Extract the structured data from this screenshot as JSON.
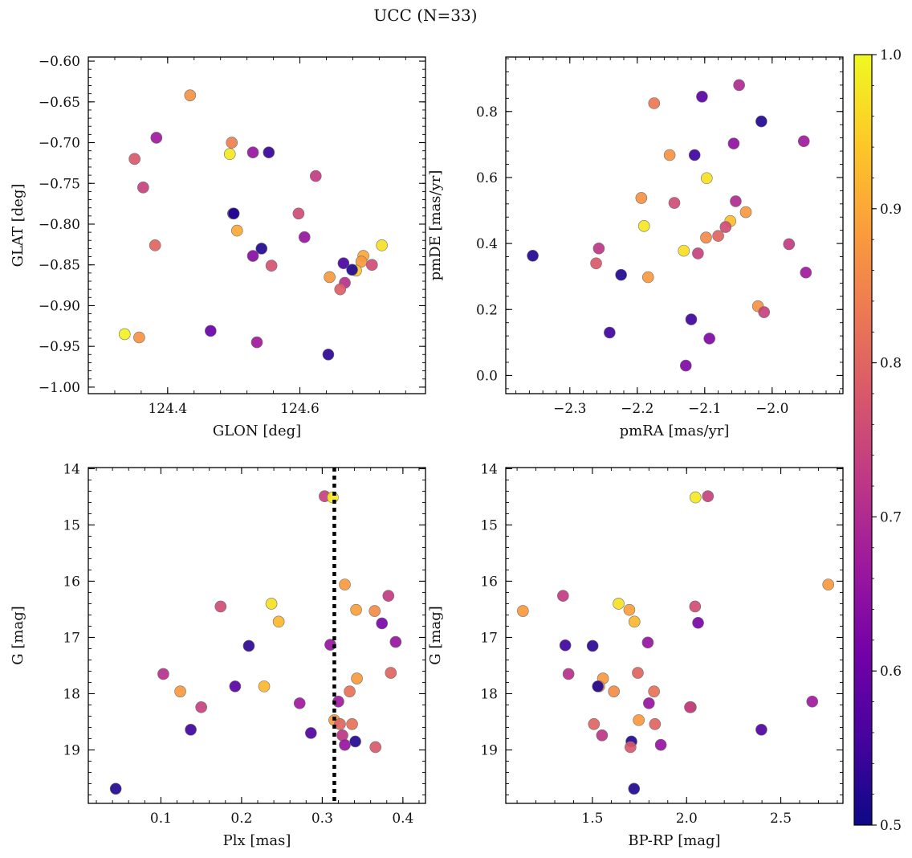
{
  "figure_title": "UCC (N=33)",
  "colorbar": {
    "min": 0.5,
    "max": 1.0,
    "ticks": [
      "0.5",
      "0.6",
      "0.7",
      "0.8",
      "0.9",
      "1.0"
    ],
    "colormap_stops": [
      "#0d0887",
      "#46039f",
      "#7201a8",
      "#9c179e",
      "#bd3786",
      "#d8576b",
      "#ed7953",
      "#fb9f3a",
      "#fdca26",
      "#f0f921"
    ]
  },
  "chart_data": [
    {
      "type": "scatter",
      "id": "p1",
      "xlabel": "GLON [deg]",
      "ylabel": "GLAT [deg]",
      "xlim": [
        124.28,
        124.79
      ],
      "ylim": [
        -1.008,
        -0.595
      ],
      "y_inverted": false,
      "xticks": [
        124.4,
        124.6
      ],
      "xtick_labels": [
        "124.4",
        "124.6"
      ],
      "yticks": [
        -1.0,
        -0.95,
        -0.9,
        -0.85,
        -0.8,
        -0.75,
        -0.7,
        -0.65,
        -0.6
      ],
      "ytick_labels": [
        "−1.00",
        "−0.95",
        "−0.90",
        "−0.85",
        "−0.80",
        "−0.75",
        "−0.70",
        "−0.65",
        "−0.60"
      ],
      "x": [
        124.434,
        124.35,
        124.383,
        124.363,
        124.381,
        124.497,
        124.494,
        124.529,
        124.553,
        124.624,
        124.598,
        124.607,
        124.499,
        124.5,
        124.505,
        124.542,
        124.529,
        124.557,
        124.724,
        124.696,
        124.693,
        124.709,
        124.685,
        124.666,
        124.679,
        124.645,
        124.668,
        124.661,
        124.335,
        124.357,
        124.465,
        124.535,
        124.643
      ],
      "y": [
        -0.642,
        -0.72,
        -0.694,
        -0.755,
        -0.826,
        -0.7,
        -0.714,
        -0.712,
        -0.712,
        -0.741,
        -0.787,
        -0.816,
        -0.787,
        -0.787,
        -0.808,
        -0.83,
        -0.839,
        -0.851,
        -0.826,
        -0.839,
        -0.846,
        -0.85,
        -0.857,
        -0.848,
        -0.856,
        -0.865,
        -0.872,
        -0.88,
        -0.935,
        -0.939,
        -0.931,
        -0.945,
        -0.96
      ],
      "c": [
        0.87,
        0.78,
        0.67,
        0.74,
        0.8,
        0.84,
        0.98,
        0.66,
        0.54,
        0.73,
        0.76,
        0.66,
        0.57,
        0.52,
        0.9,
        0.52,
        0.64,
        0.77,
        0.97,
        0.9,
        0.88,
        0.76,
        0.94,
        0.56,
        0.52,
        0.88,
        0.71,
        0.79,
        0.99,
        0.87,
        0.6,
        0.67,
        0.53
      ]
    },
    {
      "type": "scatter",
      "id": "p2",
      "xlabel": "pmRA [mas/yr]",
      "ylabel": "pmDE [mas/yr]",
      "xlim": [
        -2.395,
        -1.895
      ],
      "ylim": [
        -0.055,
        0.965
      ],
      "y_inverted": false,
      "xticks": [
        -2.3,
        -2.2,
        -2.1,
        -2.0
      ],
      "xtick_labels": [
        "−2.3",
        "−2.2",
        "−2.1",
        "−2.0"
      ],
      "yticks": [
        0.0,
        0.2,
        0.4,
        0.6,
        0.8
      ],
      "ytick_labels": [
        "0.0",
        "0.2",
        "0.4",
        "0.6",
        "0.8"
      ],
      "x": [
        -2.049,
        -2.104,
        -2.175,
        -2.016,
        -1.953,
        -2.152,
        -2.115,
        -2.057,
        -2.097,
        -2.194,
        -2.145,
        -2.054,
        -2.039,
        -2.062,
        -2.069,
        -2.19,
        -2.08,
        -2.098,
        -2.131,
        -2.11,
        -1.975,
        -2.257,
        -2.261,
        -2.355,
        -2.224,
        -2.184,
        -1.95,
        -2.021,
        -2.012,
        -2.241,
        -2.12,
        -2.093,
        -2.128
      ],
      "y": [
        0.88,
        0.845,
        0.825,
        0.77,
        0.71,
        0.668,
        0.668,
        0.703,
        0.598,
        0.538,
        0.523,
        0.528,
        0.495,
        0.468,
        0.45,
        0.453,
        0.423,
        0.418,
        0.378,
        0.37,
        0.398,
        0.385,
        0.34,
        0.363,
        0.305,
        0.298,
        0.312,
        0.21,
        0.192,
        0.13,
        0.17,
        0.112,
        0.03
      ],
      "c": [
        0.7,
        0.58,
        0.83,
        0.52,
        0.67,
        0.87,
        0.55,
        0.65,
        0.97,
        0.87,
        0.76,
        0.7,
        0.88,
        0.93,
        0.76,
        0.98,
        0.8,
        0.86,
        0.97,
        0.74,
        0.73,
        0.72,
        0.78,
        0.52,
        0.52,
        0.88,
        0.67,
        0.87,
        0.74,
        0.55,
        0.55,
        0.63,
        0.63
      ]
    },
    {
      "type": "scatter",
      "id": "p3",
      "xlabel": "Plx [mas]",
      "ylabel": "G [mag]",
      "xlim": [
        0.01,
        0.428
      ],
      "ylim": [
        19.95,
        13.98
      ],
      "y_inverted": true,
      "xticks": [
        0.1,
        0.2,
        0.3,
        0.4
      ],
      "xtick_labels": [
        "0.1",
        "0.2",
        "0.3",
        "0.4"
      ],
      "yticks": [
        14,
        15,
        16,
        17,
        18,
        19
      ],
      "ytick_labels": [
        "14",
        "15",
        "16",
        "17",
        "18",
        "19"
      ],
      "vline": {
        "x": 0.315,
        "style": "dotted"
      },
      "x": [
        0.303,
        0.313,
        0.174,
        0.237,
        0.246,
        0.209,
        0.103,
        0.124,
        0.15,
        0.137,
        0.192,
        0.228,
        0.272,
        0.286,
        0.044,
        0.31,
        0.328,
        0.342,
        0.365,
        0.382,
        0.374,
        0.391,
        0.385,
        0.343,
        0.334,
        0.32,
        0.315,
        0.322,
        0.337,
        0.325,
        0.328,
        0.341,
        0.366
      ],
      "y": [
        14.49,
        14.51,
        16.45,
        16.4,
        16.72,
        17.15,
        17.65,
        17.96,
        18.24,
        18.64,
        17.87,
        17.87,
        18.17,
        18.7,
        19.69,
        17.13,
        16.06,
        16.51,
        16.53,
        16.26,
        16.75,
        17.08,
        17.63,
        17.73,
        17.96,
        18.14,
        18.47,
        18.54,
        18.54,
        18.74,
        18.91,
        18.85,
        18.95
      ],
      "c": [
        0.74,
        0.98,
        0.76,
        0.97,
        0.92,
        0.53,
        0.71,
        0.88,
        0.74,
        0.55,
        0.58,
        0.92,
        0.67,
        0.57,
        0.52,
        0.66,
        0.88,
        0.89,
        0.86,
        0.73,
        0.62,
        0.66,
        0.8,
        0.88,
        0.82,
        0.67,
        0.88,
        0.8,
        0.82,
        0.72,
        0.66,
        0.52,
        0.78
      ]
    },
    {
      "type": "scatter",
      "id": "p4",
      "xlabel": "BP-RP [mag]",
      "ylabel": "G [mag]",
      "xlim": [
        1.04,
        2.83
      ],
      "ylim": [
        19.95,
        13.98
      ],
      "y_inverted": true,
      "xticks": [
        1.5,
        2.0,
        2.5
      ],
      "xtick_labels": [
        "1.5",
        "2.0",
        "2.5"
      ],
      "yticks": [
        14,
        15,
        16,
        17,
        18,
        19
      ],
      "ytick_labels": [
        "14",
        "15",
        "16",
        "17",
        "18",
        "19"
      ],
      "x": [
        2.047,
        2.113,
        2.752,
        1.344,
        1.131,
        1.639,
        1.696,
        1.723,
        2.045,
        2.061,
        1.356,
        1.501,
        1.794,
        1.373,
        1.741,
        1.556,
        1.536,
        1.529,
        1.614,
        1.827,
        2.022,
        1.8,
        2.667,
        1.746,
        1.508,
        1.832,
        1.551,
        1.707,
        1.863,
        2.397,
        1.702,
        1.721,
        2.018
      ],
      "y": [
        14.51,
        14.49,
        16.06,
        16.26,
        16.53,
        16.4,
        16.51,
        16.72,
        16.45,
        16.74,
        17.14,
        17.15,
        17.09,
        17.65,
        17.63,
        17.73,
        17.87,
        17.87,
        17.96,
        17.96,
        18.24,
        18.17,
        18.14,
        18.47,
        18.54,
        18.54,
        18.74,
        18.85,
        18.91,
        18.64,
        18.95,
        19.69,
        18.24
      ],
      "c": [
        0.98,
        0.74,
        0.88,
        0.73,
        0.88,
        0.97,
        0.89,
        0.92,
        0.76,
        0.62,
        0.55,
        0.53,
        0.66,
        0.71,
        0.8,
        0.88,
        0.88,
        0.52,
        0.86,
        0.82,
        0.74,
        0.66,
        0.67,
        0.88,
        0.8,
        0.8,
        0.72,
        0.52,
        0.66,
        0.57,
        0.78,
        0.52,
        0.74
      ]
    }
  ]
}
